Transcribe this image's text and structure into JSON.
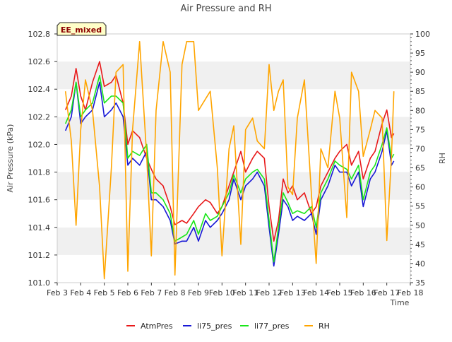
{
  "chart_data": {
    "type": "line",
    "title": "Air Pressure and RH",
    "xlabel": "Time",
    "ylabel_left": "Air Pressure (kPa)",
    "ylabel_right": "RH",
    "badge": "EE_mixed",
    "x_ticks": [
      "Feb 3",
      "Feb 4",
      "Feb 5",
      "Feb 6",
      "Feb 7",
      "Feb 8",
      "Feb 9",
      "Feb 10",
      "Feb 11",
      "Feb 12",
      "Feb 13",
      "Feb 14",
      "Feb 15",
      "Feb 16",
      "Feb 17",
      "Feb 18"
    ],
    "xlim": [
      3,
      18
    ],
    "ylim_left": [
      101.0,
      102.8
    ],
    "yticks_left": [
      "101.0",
      "101.2",
      "101.4",
      "101.6",
      "101.8",
      "102.0",
      "102.2",
      "102.4",
      "102.6",
      "102.8"
    ],
    "ylim_right": [
      35,
      100
    ],
    "yticks_right": [
      "35",
      "40",
      "45",
      "50",
      "55",
      "60",
      "65",
      "70",
      "75",
      "80",
      "85",
      "90",
      "95",
      "100"
    ],
    "grid": "horizontal bands",
    "legend_position": "bottom",
    "x": [
      3.35,
      3.6,
      3.8,
      4.0,
      4.2,
      4.5,
      4.8,
      5.0,
      5.3,
      5.5,
      5.8,
      6.0,
      6.2,
      6.5,
      6.8,
      7.0,
      7.2,
      7.5,
      7.8,
      8.0,
      8.3,
      8.5,
      8.8,
      9.0,
      9.3,
      9.5,
      9.8,
      10.0,
      10.3,
      10.5,
      10.8,
      11.0,
      11.3,
      11.5,
      11.8,
      12.0,
      12.2,
      12.4,
      12.6,
      12.8,
      13.0,
      13.2,
      13.5,
      13.8,
      14.0,
      14.2,
      14.5,
      14.8,
      15.0,
      15.3,
      15.5,
      15.8,
      16.0,
      16.3,
      16.5,
      16.8,
      17.0,
      17.2,
      17.3
    ],
    "series": [
      {
        "name": "AtmPres",
        "color": "#e8191a",
        "values": [
          102.25,
          102.35,
          102.55,
          102.35,
          102.25,
          102.45,
          102.6,
          102.42,
          102.45,
          102.5,
          102.3,
          102.0,
          102.1,
          102.05,
          101.9,
          101.82,
          101.75,
          101.7,
          101.55,
          101.42,
          101.45,
          101.43,
          101.5,
          101.55,
          101.6,
          101.58,
          101.5,
          101.55,
          101.7,
          101.8,
          101.95,
          101.8,
          101.9,
          101.95,
          101.9,
          101.55,
          101.3,
          101.45,
          101.75,
          101.65,
          101.7,
          101.6,
          101.65,
          101.5,
          101.55,
          101.7,
          101.8,
          101.9,
          101.95,
          102.0,
          101.85,
          101.95,
          101.75,
          101.9,
          101.95,
          102.15,
          102.25,
          102.05,
          102.08
        ]
      },
      {
        "name": "li75_pres",
        "color": "#1818d6",
        "values": [
          102.1,
          102.2,
          102.45,
          102.15,
          102.2,
          102.25,
          102.45,
          102.2,
          102.25,
          102.3,
          102.2,
          101.85,
          101.9,
          101.85,
          101.95,
          101.6,
          101.6,
          101.55,
          101.45,
          101.28,
          101.3,
          101.3,
          101.4,
          101.3,
          101.45,
          101.4,
          101.45,
          101.5,
          101.6,
          101.75,
          101.6,
          101.7,
          101.75,
          101.8,
          101.7,
          101.4,
          101.12,
          101.35,
          101.6,
          101.55,
          101.45,
          101.48,
          101.45,
          101.5,
          101.35,
          101.6,
          101.7,
          101.85,
          101.8,
          101.8,
          101.7,
          101.8,
          101.55,
          101.75,
          101.8,
          101.95,
          102.1,
          101.85,
          101.88
        ]
      },
      {
        "name": "li77_pres",
        "color": "#19e619",
        "values": [
          102.15,
          102.25,
          102.45,
          102.2,
          102.25,
          102.3,
          102.5,
          102.3,
          102.35,
          102.35,
          102.3,
          101.9,
          101.95,
          101.92,
          102.0,
          101.65,
          101.65,
          101.6,
          101.5,
          101.3,
          101.33,
          101.35,
          101.45,
          101.35,
          101.5,
          101.45,
          101.48,
          101.55,
          101.65,
          101.78,
          101.65,
          101.75,
          101.8,
          101.82,
          101.75,
          101.45,
          101.15,
          101.4,
          101.65,
          101.58,
          101.5,
          101.52,
          101.5,
          101.55,
          101.4,
          101.65,
          101.75,
          101.88,
          101.85,
          101.82,
          101.75,
          101.85,
          101.6,
          101.8,
          101.85,
          102.0,
          102.12,
          101.9,
          101.93
        ]
      },
      {
        "name": "RH",
        "color": "#ffa500",
        "axis": "right",
        "values": [
          85,
          72,
          50,
          75,
          88,
          80,
          60,
          36,
          65,
          90,
          92,
          38,
          75,
          98,
          68,
          42,
          80,
          98,
          90,
          37,
          92,
          98,
          98,
          80,
          83,
          85,
          65,
          42,
          70,
          76,
          45,
          75,
          78,
          72,
          70,
          92,
          80,
          85,
          88,
          60,
          58,
          78,
          88,
          58,
          40,
          70,
          65,
          85,
          78,
          52,
          90,
          85,
          68,
          75,
          80,
          78,
          46,
          68,
          85
        ]
      }
    ]
  }
}
